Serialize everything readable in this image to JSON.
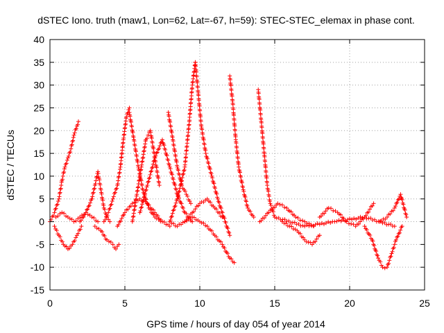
{
  "chart_data": {
    "type": "scatter",
    "title": "dSTEC Iono. truth (maw1, Lon=62, Lat=-67, h=59): STEC-STEC_elemax in phase cont.",
    "xlabel": "GPS time / hours of day 054 of year 2014",
    "ylabel": "dSTEC  / TECUs",
    "xlim": [
      0,
      25
    ],
    "ylim": [
      -15,
      40
    ],
    "xticks": [
      0,
      5,
      10,
      15,
      20,
      25
    ],
    "yticks": [
      -15,
      -10,
      -5,
      0,
      5,
      10,
      15,
      20,
      25,
      30,
      35,
      40
    ],
    "xtick_labels": [
      "0",
      "5",
      "10",
      "15",
      "20",
      "25"
    ],
    "ytick_labels": [
      "-15",
      "-10",
      "-5",
      "0",
      "5",
      "10",
      "15",
      "20",
      "25",
      "30",
      "35",
      "40"
    ],
    "grid": true,
    "marker": "+",
    "color": "#ff0000",
    "series": [
      {
        "x": [
          0.0,
          0.3,
          0.6,
          0.8,
          1.0,
          1.2,
          1.4,
          1.6,
          1.8,
          1.9
        ],
        "y": [
          0,
          2,
          5,
          9,
          12,
          14,
          16,
          19,
          21,
          22
        ]
      },
      {
        "x": [
          0.3,
          0.6,
          0.9,
          1.2,
          1.5,
          1.8,
          2.1
        ],
        "y": [
          -1,
          -3,
          -5,
          -6,
          -5,
          -3,
          -1
        ]
      },
      {
        "x": [
          0.4,
          0.8,
          1.2,
          1.6,
          2.0,
          2.4,
          2.8,
          3.2
        ],
        "y": [
          1,
          2,
          1,
          0,
          1,
          2,
          1,
          0
        ]
      },
      {
        "x": [
          2.0,
          2.4,
          2.8,
          3.0,
          3.2,
          3.4,
          3.6,
          3.8,
          4.0
        ],
        "y": [
          0,
          2,
          5,
          8,
          11,
          7,
          3,
          1,
          0
        ]
      },
      {
        "x": [
          3.0,
          3.4,
          3.8,
          4.2,
          4.4,
          4.6
        ],
        "y": [
          -1,
          -2,
          -4,
          -5,
          -6,
          -5
        ]
      },
      {
        "x": [
          3.6,
          3.9,
          4.2,
          4.5,
          4.7,
          4.9,
          5.1,
          5.3
        ],
        "y": [
          0,
          2,
          5,
          8,
          12,
          18,
          23,
          25
        ]
      },
      {
        "x": [
          5.3,
          5.6,
          5.9,
          6.2,
          6.6,
          7.0,
          7.5
        ],
        "y": [
          24,
          18,
          12,
          7,
          3,
          1,
          0
        ]
      },
      {
        "x": [
          4.5,
          5.0,
          5.5,
          6.0,
          6.5,
          7.0,
          7.5,
          8.0
        ],
        "y": [
          -1,
          2,
          4,
          5,
          4,
          2,
          0,
          -1
        ]
      },
      {
        "x": [
          5.5,
          5.8,
          6.1,
          6.4,
          6.7,
          7.0,
          7.3
        ],
        "y": [
          0,
          6,
          12,
          18,
          20,
          14,
          8
        ]
      },
      {
        "x": [
          6.0,
          6.5,
          7.0,
          7.5,
          8.0,
          8.5,
          9.0,
          9.5
        ],
        "y": [
          2,
          8,
          14,
          18,
          12,
          6,
          2,
          0
        ]
      },
      {
        "x": [
          7.9,
          8.2,
          8.5,
          8.8,
          9.1,
          9.4
        ],
        "y": [
          24,
          18,
          12,
          8,
          6,
          4
        ]
      },
      {
        "x": [
          8.0,
          8.5,
          9.0,
          9.3,
          9.5,
          9.7
        ],
        "y": [
          0,
          5,
          12,
          22,
          30,
          35
        ]
      },
      {
        "x": [
          9.7,
          9.9,
          10.1,
          10.4,
          10.8,
          11.2,
          11.6,
          12.0
        ],
        "y": [
          35,
          28,
          21,
          15,
          10,
          5,
          1,
          -3
        ]
      },
      {
        "x": [
          9.0,
          9.5,
          10.0,
          10.5,
          11.0,
          11.5,
          12.0,
          12.3
        ],
        "y": [
          0,
          1,
          0,
          -1,
          -3,
          -5,
          -8,
          -9
        ]
      },
      {
        "x": [
          8.0,
          8.5,
          9.0,
          9.5,
          10.0,
          10.5,
          11.0,
          11.5
        ],
        "y": [
          0,
          -1,
          0,
          2,
          4,
          5,
          3,
          1
        ]
      },
      {
        "x": [
          12.0,
          12.2,
          12.4,
          12.6,
          12.9,
          13.2,
          13.6
        ],
        "y": [
          32,
          26,
          18,
          12,
          7,
          3,
          1
        ]
      },
      {
        "x": [
          13.9,
          14.1,
          14.3,
          14.5,
          14.7,
          15.0
        ],
        "y": [
          29,
          22,
          15,
          8,
          4,
          1
        ]
      },
      {
        "x": [
          14.0,
          14.6,
          15.2,
          15.8,
          16.4,
          17.0,
          17.6
        ],
        "y": [
          0,
          2,
          4,
          3,
          1,
          0,
          -1
        ]
      },
      {
        "x": [
          15.5,
          16.0,
          16.5,
          17.0,
          17.5,
          18.0
        ],
        "y": [
          0,
          -1,
          -2,
          -4,
          -5,
          -3
        ]
      },
      {
        "x": [
          18.0,
          18.6,
          19.2,
          19.8,
          20.4,
          21.0,
          21.6
        ],
        "y": [
          1,
          3,
          2,
          0,
          -1,
          1,
          4
        ]
      },
      {
        "x": [
          21.0,
          21.5,
          21.9,
          22.2,
          22.5,
          22.8,
          23.1,
          23.5
        ],
        "y": [
          -1,
          -4,
          -8,
          -10,
          -10,
          -7,
          -4,
          -1
        ]
      },
      {
        "x": [
          22.0,
          22.5,
          23.0,
          23.4,
          23.8
        ],
        "y": [
          0,
          1,
          3,
          6,
          1
        ]
      },
      {
        "x": [
          15.0,
          17.0,
          19.0,
          21.0,
          23.0
        ],
        "y": [
          1,
          -1,
          0,
          1,
          -1
        ]
      }
    ]
  }
}
